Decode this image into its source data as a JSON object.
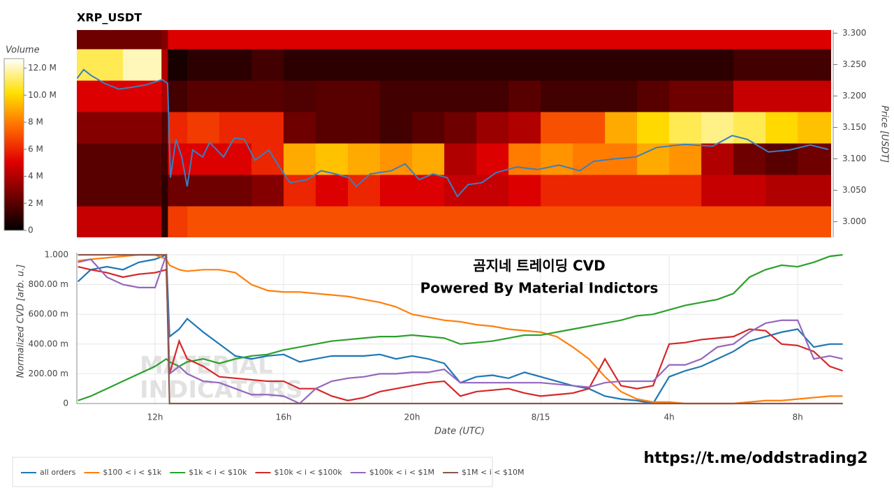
{
  "chart_data": [
    {
      "type": "heatmap",
      "title": "XRP_USDT",
      "x_bins": [
        9.565,
        11,
        12.2,
        12.4,
        13,
        14,
        15,
        16,
        17,
        18,
        19,
        20,
        21,
        22,
        23,
        24,
        25,
        26,
        27,
        28,
        29,
        30,
        31,
        32,
        33.04
      ],
      "y_bins": [
        2.975,
        3.025,
        3.075,
        3.125,
        3.175,
        3.225,
        3.275,
        3.305
      ],
      "z": [
        [
          4.5,
          4.5,
          1.0,
          6.5,
          7,
          7,
          7,
          7,
          7,
          7,
          7,
          7,
          7,
          7,
          7,
          7,
          7,
          7,
          7,
          7,
          7,
          7,
          7,
          7
        ],
        [
          2,
          2,
          1,
          2.5,
          2.5,
          2.5,
          3,
          6,
          5,
          6,
          5,
          5,
          4.5,
          4.5,
          5,
          6,
          6,
          6,
          6,
          6,
          4.5,
          4.5,
          4,
          4
        ],
        [
          2,
          2,
          1.5,
          5,
          5,
          5,
          6,
          9,
          9.5,
          9,
          8.5,
          9,
          4,
          5,
          8,
          8.5,
          8,
          8,
          9,
          8.5,
          4,
          2.5,
          2,
          2.5
        ],
        [
          3,
          3,
          2,
          6,
          6.5,
          6,
          6,
          2.5,
          2,
          2,
          1.5,
          2,
          2.5,
          3.5,
          4,
          7,
          7,
          9,
          10,
          11,
          11.5,
          11,
          10,
          9.5
        ],
        [
          5,
          5,
          4,
          1.5,
          2,
          2,
          2,
          1.8,
          2,
          2,
          1.5,
          1.5,
          1.5,
          1.5,
          2,
          1.5,
          1.5,
          1.5,
          2,
          2.5,
          2.5,
          4.5,
          4.5,
          4.5
        ],
        [
          11,
          12,
          4,
          0.5,
          1,
          1,
          1.5,
          1,
          1,
          1,
          1,
          1,
          1,
          1,
          1,
          1,
          1,
          1,
          1,
          1,
          1,
          1.5,
          1.5,
          1.5
        ],
        [
          2.5,
          2.5,
          3,
          5,
          5,
          5,
          5,
          5,
          5,
          5,
          5,
          5,
          5,
          5,
          5,
          5,
          5,
          5,
          5,
          5,
          5,
          5,
          5,
          5
        ]
      ],
      "colorscale": [
        "#000000",
        "#700000",
        "#e00000",
        "#ff6a00",
        "#ffe000",
        "#ffffff"
      ],
      "colorbar_title": "Volume",
      "zlim": [
        0,
        12.7
      ],
      "zticks": [
        0,
        {
          "value": 2,
          "label": "2 M"
        },
        {
          "value": 4,
          "label": "4 M"
        },
        {
          "value": 6,
          "label": "6 M"
        },
        {
          "value": 8,
          "label": "8 M"
        },
        {
          "value": 10,
          "label": "10.0 M"
        },
        {
          "value": 12,
          "label": "12.0 M"
        }
      ],
      "xlim": [
        9.565,
        33.04
      ],
      "ylim": [
        2.975,
        3.305
      ],
      "yticks": [
        {
          "value": 3.0,
          "label": "3.000"
        },
        {
          "value": 3.05,
          "label": "3.050"
        },
        {
          "value": 3.1,
          "label": "3.100"
        },
        {
          "value": 3.15,
          "label": "3.150"
        },
        {
          "value": 3.2,
          "label": "3.200"
        },
        {
          "value": 3.25,
          "label": "3.250"
        },
        {
          "value": 3.3,
          "label": "3.300"
        }
      ],
      "y_label": "Price [USDT]",
      "line": {
        "color": "#3a7fc1",
        "x": [
          9.57,
          9.78,
          10.0,
          10.43,
          10.87,
          11.3,
          11.74,
          12.22,
          12.39,
          12.48,
          12.65,
          12.83,
          13.0,
          13.17,
          13.48,
          13.7,
          14.13,
          14.46,
          14.78,
          15.11,
          15.54,
          15.87,
          16.2,
          16.74,
          17.17,
          17.61,
          18.04,
          18.26,
          18.7,
          19.35,
          19.78,
          20.22,
          20.65,
          21.09,
          21.41,
          21.74,
          22.17,
          22.61,
          23.26,
          23.91,
          24.57,
          25.22,
          25.65,
          26.3,
          26.96,
          27.61,
          28.48,
          29.35,
          29.96,
          30.43,
          31.09,
          31.74,
          32.39,
          32.95
        ],
        "values": [
          3.228,
          3.242,
          3.233,
          3.22,
          3.211,
          3.214,
          3.218,
          3.226,
          3.22,
          3.07,
          3.131,
          3.103,
          3.056,
          3.114,
          3.103,
          3.126,
          3.103,
          3.133,
          3.131,
          3.098,
          3.114,
          3.087,
          3.062,
          3.067,
          3.081,
          3.076,
          3.07,
          3.056,
          3.076,
          3.081,
          3.092,
          3.067,
          3.076,
          3.07,
          3.04,
          3.059,
          3.062,
          3.078,
          3.087,
          3.083,
          3.09,
          3.081,
          3.096,
          3.1,
          3.103,
          3.118,
          3.123,
          3.12,
          3.137,
          3.131,
          3.111,
          3.114,
          3.122,
          3.115
        ]
      }
    },
    {
      "type": "line",
      "annotations": [
        "곰지네 트레이딩 CVD",
        "Powered By Material Indictors"
      ],
      "watermark": [
        "MATERIAL",
        "INDICATORS"
      ],
      "x": [
        9.6,
        10,
        10.5,
        11,
        11.5,
        12,
        12.35,
        12.45,
        12.75,
        13,
        13.5,
        14,
        14.5,
        15,
        15.5,
        16,
        16.5,
        17,
        17.5,
        18,
        18.5,
        19,
        19.5,
        20,
        20.5,
        21,
        21.5,
        22,
        22.5,
        23,
        23.5,
        24,
        24.5,
        25,
        25.5,
        26,
        26.5,
        27,
        27.5,
        28,
        28.5,
        29,
        29.5,
        30,
        30.5,
        31,
        31.5,
        32,
        32.5,
        33,
        33.4
      ],
      "xlim": [
        9.565,
        33.41
      ],
      "xticks": [
        {
          "value": 12,
          "label": "12h"
        },
        {
          "value": 16,
          "label": "16h"
        },
        {
          "value": 20,
          "label": "20h"
        },
        {
          "value": 24,
          "label": "8/15"
        },
        {
          "value": 28,
          "label": "4h"
        },
        {
          "value": 32,
          "label": "8h"
        }
      ],
      "ylim": [
        0,
        1
      ],
      "yticks": [
        0,
        {
          "value": 0.2,
          "label": "200.00 m"
        },
        {
          "value": 0.4,
          "label": "400.00 m"
        },
        {
          "value": 0.6,
          "label": "600.00 m"
        },
        {
          "value": 0.8,
          "label": "800.00 m"
        },
        {
          "value": 1,
          "label": "1.000"
        }
      ],
      "x_label": "Date (UTC)",
      "y_label": "Normalized CVD [arb. u.]",
      "grid": true,
      "series": [
        {
          "name": "all orders",
          "color": "#1f77b4",
          "values": [
            0.82,
            0.9,
            0.92,
            0.9,
            0.95,
            0.97,
            1.0,
            0.45,
            0.5,
            0.57,
            0.48,
            0.4,
            0.32,
            0.3,
            0.32,
            0.33,
            0.28,
            0.3,
            0.32,
            0.32,
            0.32,
            0.33,
            0.3,
            0.32,
            0.3,
            0.27,
            0.14,
            0.18,
            0.19,
            0.17,
            0.21,
            0.18,
            0.15,
            0.12,
            0.1,
            0.05,
            0.03,
            0.02,
            0.0,
            0.18,
            0.22,
            0.25,
            0.3,
            0.35,
            0.42,
            0.45,
            0.48,
            0.5,
            0.38,
            0.4,
            0.4
          ]
        },
        {
          "name": "$100 < i < $1k",
          "color": "#ff7f0e",
          "values": [
            0.96,
            0.97,
            0.98,
            0.99,
            1.0,
            1.0,
            0.97,
            0.93,
            0.9,
            0.89,
            0.9,
            0.9,
            0.88,
            0.8,
            0.76,
            0.75,
            0.75,
            0.74,
            0.73,
            0.72,
            0.7,
            0.68,
            0.65,
            0.6,
            0.58,
            0.56,
            0.55,
            0.53,
            0.52,
            0.5,
            0.49,
            0.48,
            0.45,
            0.38,
            0.3,
            0.18,
            0.08,
            0.03,
            0.01,
            0.01,
            0.0,
            0.0,
            0.0,
            0.0,
            0.01,
            0.02,
            0.02,
            0.03,
            0.04,
            0.05,
            0.05
          ]
        },
        {
          "name": "$1k < i < $10k",
          "color": "#2ca02c",
          "values": [
            0.02,
            0.05,
            0.1,
            0.15,
            0.2,
            0.25,
            0.3,
            0.28,
            0.25,
            0.28,
            0.3,
            0.27,
            0.3,
            0.32,
            0.33,
            0.36,
            0.38,
            0.4,
            0.42,
            0.43,
            0.44,
            0.45,
            0.45,
            0.46,
            0.45,
            0.44,
            0.4,
            0.41,
            0.42,
            0.44,
            0.46,
            0.46,
            0.48,
            0.5,
            0.52,
            0.54,
            0.56,
            0.59,
            0.6,
            0.63,
            0.66,
            0.68,
            0.7,
            0.74,
            0.85,
            0.9,
            0.93,
            0.92,
            0.95,
            0.99,
            1.0
          ]
        },
        {
          "name": "$10k < i < $100k",
          "color": "#d62728",
          "values": [
            0.92,
            0.9,
            0.88,
            0.85,
            0.87,
            0.88,
            0.9,
            0.2,
            0.42,
            0.3,
            0.25,
            0.18,
            0.17,
            0.16,
            0.15,
            0.15,
            0.1,
            0.1,
            0.05,
            0.02,
            0.04,
            0.08,
            0.1,
            0.12,
            0.14,
            0.15,
            0.05,
            0.08,
            0.09,
            0.1,
            0.07,
            0.05,
            0.06,
            0.07,
            0.1,
            0.3,
            0.12,
            0.1,
            0.12,
            0.4,
            0.41,
            0.43,
            0.44,
            0.45,
            0.5,
            0.49,
            0.4,
            0.39,
            0.35,
            0.25,
            0.22
          ]
        },
        {
          "name": "$100k < i < $1M",
          "color": "#9467bd",
          "values": [
            0.95,
            0.97,
            0.85,
            0.8,
            0.78,
            0.78,
            1.0,
            0.2,
            0.25,
            0.2,
            0.15,
            0.14,
            0.1,
            0.06,
            0.06,
            0.05,
            0.0,
            0.1,
            0.15,
            0.17,
            0.18,
            0.2,
            0.2,
            0.21,
            0.21,
            0.23,
            0.14,
            0.14,
            0.14,
            0.14,
            0.14,
            0.14,
            0.13,
            0.12,
            0.11,
            0.14,
            0.15,
            0.15,
            0.15,
            0.26,
            0.26,
            0.3,
            0.38,
            0.4,
            0.48,
            0.54,
            0.56,
            0.56,
            0.3,
            0.32,
            0.3
          ]
        },
        {
          "name": "$1M < i < $10M",
          "color": "#8c564b",
          "values": [
            1.0,
            1.0,
            1.0,
            1.0,
            1.0,
            1.0,
            1.0,
            0,
            0,
            0,
            0,
            0,
            0,
            0,
            0,
            0,
            0,
            0,
            0,
            0,
            0,
            0,
            0,
            0,
            0,
            0,
            0,
            0,
            0,
            0,
            0,
            0,
            0,
            0,
            0,
            0,
            0,
            0,
            0,
            0,
            0,
            0,
            0,
            0,
            0,
            0,
            0,
            0,
            0,
            0,
            0
          ]
        }
      ]
    }
  ],
  "footer": "https://t.me/oddstrading2"
}
